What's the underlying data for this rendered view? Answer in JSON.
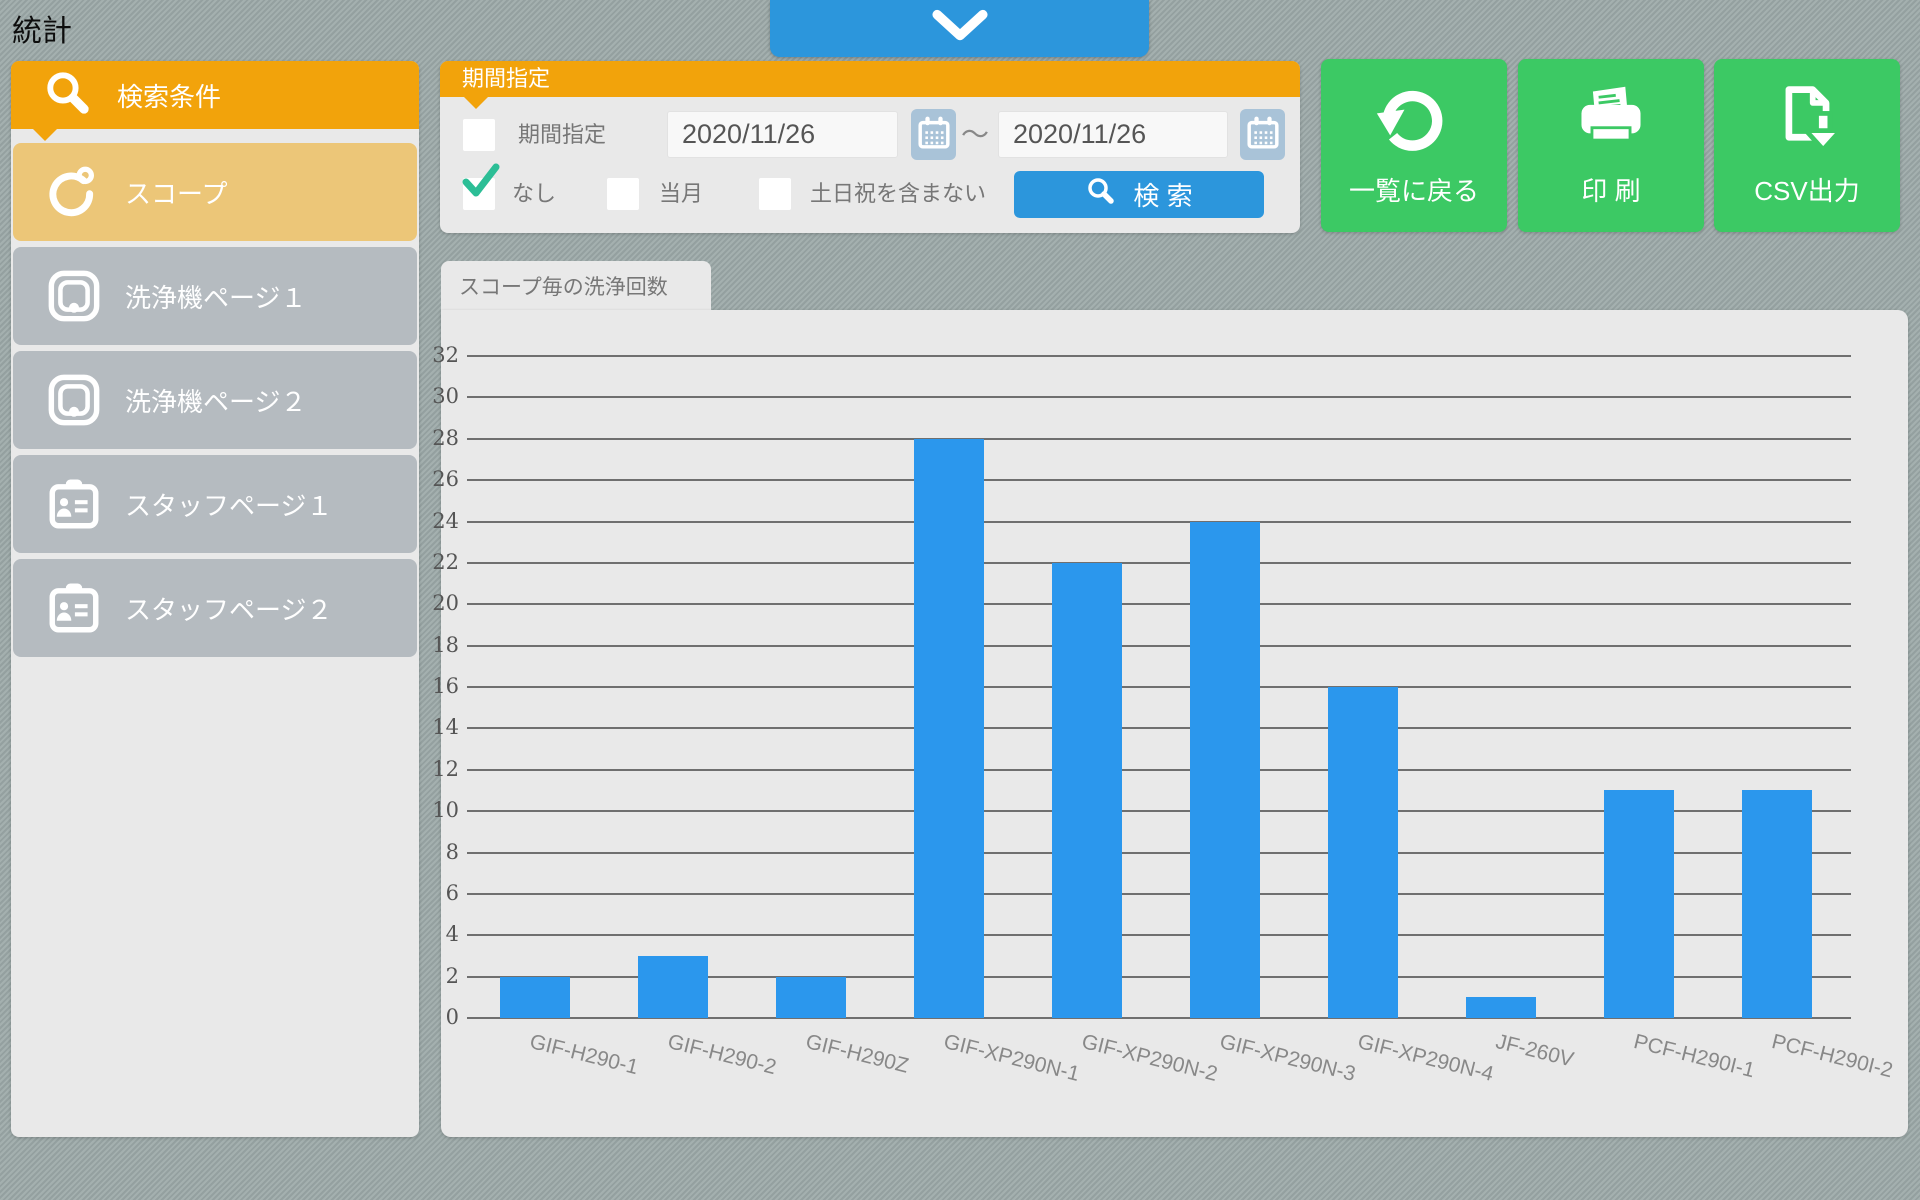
{
  "app": {
    "title": "統計"
  },
  "colors": {
    "orange": "#F2A30B",
    "tan": "#ECC678",
    "item-gray": "#B5BBC0",
    "blue": "#2C96DC",
    "green": "#3CC964",
    "bar": "#2B97ED",
    "panel": "#E9E9E9",
    "cal": "#A9C3D8",
    "check": "#2CBE96",
    "bg-base": "#9CA9A8"
  },
  "sidebar": {
    "header": "検索条件",
    "items": [
      {
        "id": "scope",
        "label": "スコープ",
        "icon": "scope-icon",
        "active": true
      },
      {
        "id": "washer-page-1",
        "label": "洗浄機ページ１",
        "icon": "washer-icon",
        "active": false
      },
      {
        "id": "washer-page-2",
        "label": "洗浄機ページ２",
        "icon": "washer-icon",
        "active": false
      },
      {
        "id": "staff-page-1",
        "label": "スタッフページ１",
        "icon": "staff-icon",
        "active": false
      },
      {
        "id": "staff-page-2",
        "label": "スタッフページ２",
        "icon": "staff-icon",
        "active": false
      }
    ]
  },
  "period": {
    "header": "期間指定",
    "range_checkbox": {
      "id": "period-range",
      "label": "期間指定",
      "checked": false
    },
    "date_from": "2020/11/26",
    "tilde": "～",
    "date_to": "2020/11/26",
    "filters": [
      {
        "id": "none",
        "label": "なし",
        "checked": true
      },
      {
        "id": "current-month",
        "label": "当月",
        "checked": false
      },
      {
        "id": "exclude-weekends-holidays",
        "label": "土日祝を含まない",
        "checked": false
      }
    ],
    "search_label": "検 索"
  },
  "actions": [
    {
      "id": "back-to-list",
      "label": "一覧に戻る",
      "icon": "return-icon"
    },
    {
      "id": "print",
      "label": "印 刷",
      "icon": "printer-icon"
    },
    {
      "id": "csv-export",
      "label": "CSV出力",
      "icon": "csv-download-icon"
    }
  ],
  "chart_tab": "スコープ毎の洗浄回数",
  "chart_data": {
    "type": "bar",
    "title": "スコープ毎の洗浄回数",
    "categories": [
      "GIF-H290-1",
      "GIF-H290-2",
      "GIF-H290Z",
      "GIF-XP290N-1",
      "GIF-XP290N-2",
      "GIF-XP290N-3",
      "GIF-XP290N-4",
      "JF-260V",
      "PCF-H290I-1",
      "PCF-H290I-2"
    ],
    "values": [
      2,
      3,
      2,
      28,
      22,
      24,
      16,
      1,
      11,
      11
    ],
    "xlabel": "",
    "ylabel": "",
    "ylim": [
      0,
      32
    ],
    "ytick_step": 2,
    "grid": true,
    "legend": false,
    "bar_color": "#2B97ED"
  }
}
